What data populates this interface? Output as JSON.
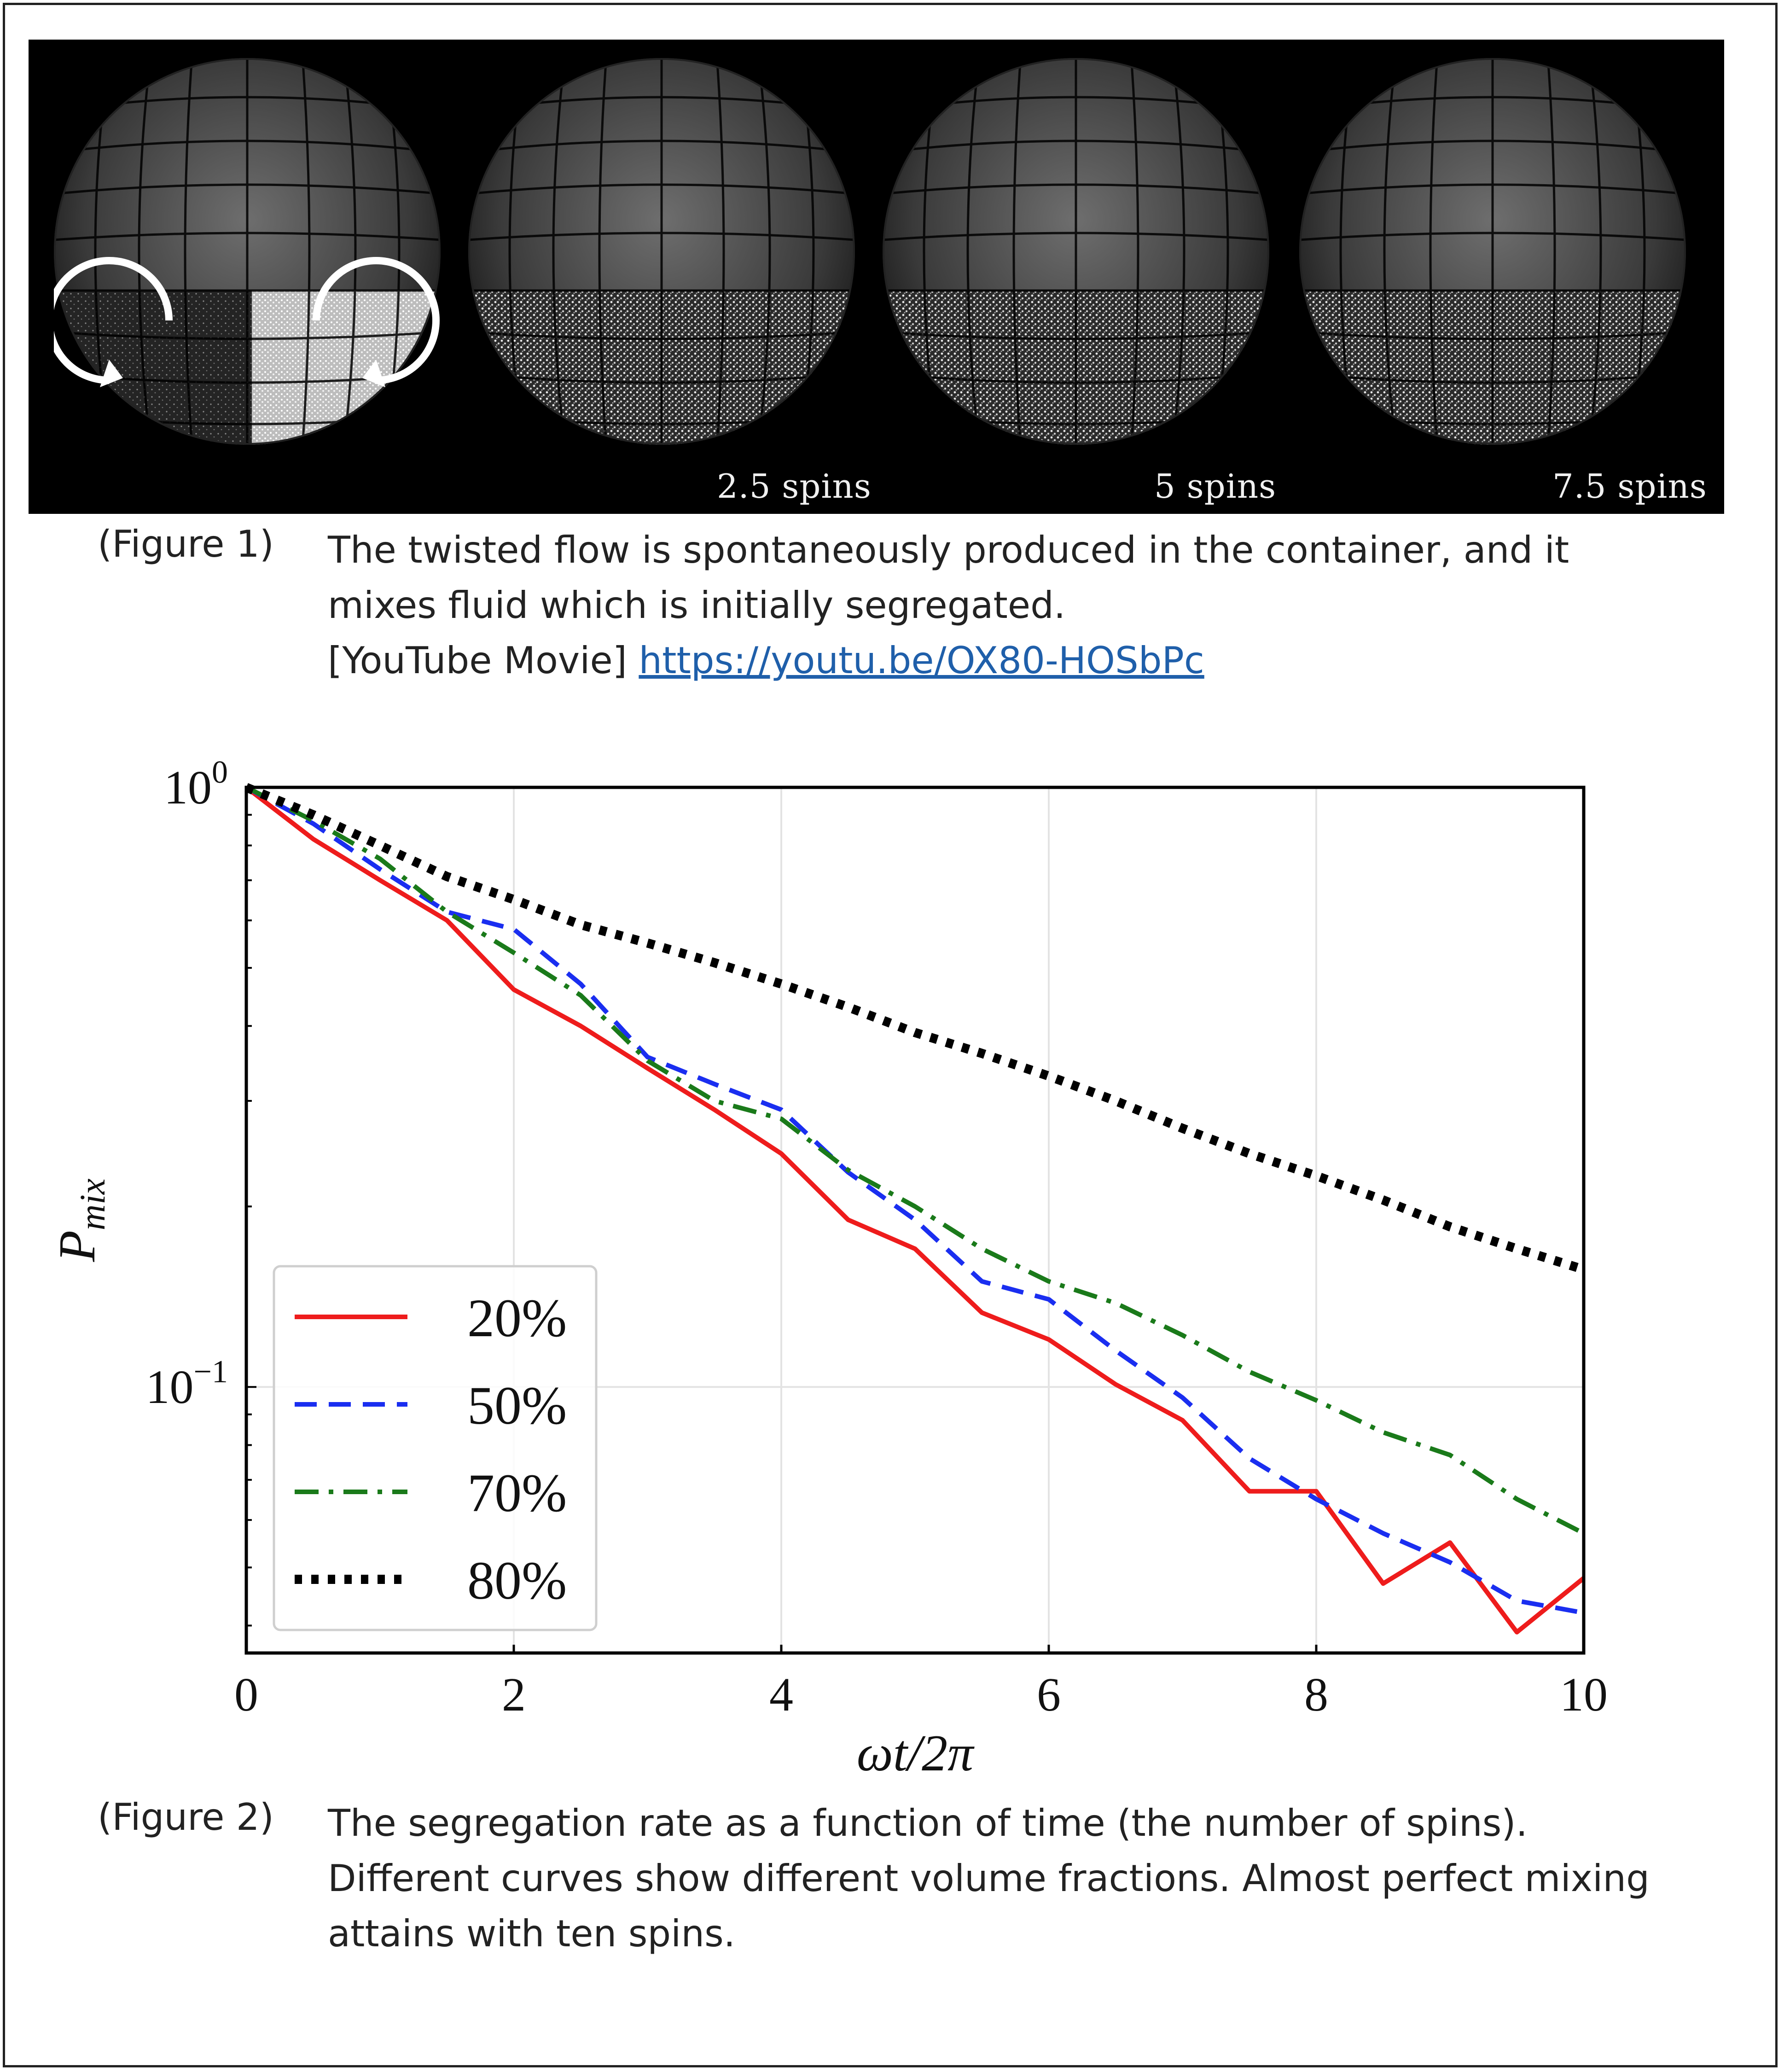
{
  "figure1": {
    "spin_labels": [
      "",
      "2.5 spins",
      "5 spins",
      "7.5 spins"
    ],
    "label": "(Figure 1)",
    "caption_line1": "The twisted flow is spontaneously produced in the container, and it",
    "caption_line2": "mixes fluid which is initially segregated.",
    "movie_prefix": "[YouTube Movie] ",
    "movie_url": "https://youtu.be/OX80-HOSbPc"
  },
  "figure2": {
    "label": "(Figure 2)",
    "caption_line1": "The segregation rate as a function of time (the number of spins).",
    "caption_line2": "Different curves show different volume fractions. Almost perfect mixing",
    "caption_line3": "attains with ten spins."
  },
  "chart_data": {
    "type": "line",
    "title": "",
    "xlabel": "ωt/2π",
    "ylabel": "P_mix",
    "xlim": [
      0,
      10
    ],
    "ylim": [
      0.036,
      1.0
    ],
    "yscale": "log",
    "grid": true,
    "legend_position": "lower-left",
    "x_ticks": [
      "0",
      "2",
      "4",
      "6",
      "8",
      "10"
    ],
    "y_ticks": [
      {
        "base": "10",
        "exp": "0",
        "value": 1.0
      },
      {
        "base": "10",
        "exp": "−1",
        "value": 0.1
      }
    ],
    "x": [
      0,
      0.5,
      1,
      1.5,
      2,
      2.5,
      3,
      3.5,
      4,
      4.5,
      5,
      5.5,
      6,
      6.5,
      7,
      7.5,
      8,
      8.5,
      9,
      9.5,
      10
    ],
    "series": [
      {
        "name": "20%",
        "color": "#ee1c1c",
        "dash": "solid",
        "values": [
          1.0,
          0.82,
          0.7,
          0.6,
          0.46,
          0.4,
          0.34,
          0.29,
          0.245,
          0.19,
          0.17,
          0.133,
          0.12,
          0.101,
          0.088,
          0.067,
          0.067,
          0.047,
          0.055,
          0.039,
          0.048
        ]
      },
      {
        "name": "50%",
        "color": "#1a2ef0",
        "dash": "dash",
        "values": [
          1.0,
          0.87,
          0.73,
          0.62,
          0.58,
          0.47,
          0.355,
          0.32,
          0.29,
          0.228,
          0.19,
          0.15,
          0.14,
          0.115,
          0.096,
          0.076,
          0.065,
          0.057,
          0.051,
          0.044,
          0.042
        ]
      },
      {
        "name": "70%",
        "color": "#1a7a1a",
        "dash": "dashdot",
        "values": [
          1.0,
          0.88,
          0.76,
          0.62,
          0.53,
          0.45,
          0.35,
          0.3,
          0.28,
          0.23,
          0.2,
          0.17,
          0.15,
          0.138,
          0.122,
          0.106,
          0.095,
          0.084,
          0.077,
          0.065,
          0.057
        ]
      },
      {
        "name": "80%",
        "color": "#000000",
        "dash": "dot",
        "values": [
          1.0,
          0.9,
          0.8,
          0.71,
          0.65,
          0.59,
          0.55,
          0.51,
          0.47,
          0.43,
          0.39,
          0.36,
          0.33,
          0.3,
          0.27,
          0.245,
          0.225,
          0.205,
          0.185,
          0.17,
          0.157
        ]
      }
    ]
  }
}
